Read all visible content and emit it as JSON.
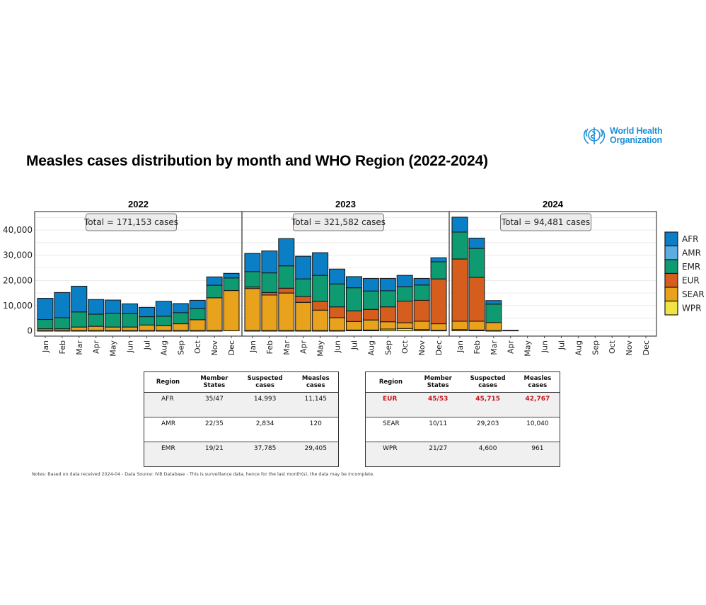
{
  "logo": {
    "line1": "World Health",
    "line2": "Organization",
    "icon": "who-emblem-icon"
  },
  "title": "Measles cases distribution by month and WHO Region (2022-2024)",
  "chart_data": {
    "type": "bar",
    "stacked": true,
    "title": "Measles cases distribution by month and WHO Region (2022-2024)",
    "xlabel": "",
    "ylabel": "",
    "ylim": [
      0,
      47000
    ],
    "yticks": [
      0,
      10000,
      20000,
      30000,
      40000
    ],
    "ytick_labels": [
      "0",
      "10,000",
      "20,000",
      "30,000",
      "40,000"
    ],
    "grid": true,
    "legend_position": "right",
    "legend": [
      "AFR",
      "AMR",
      "EMR",
      "EUR",
      "SEAR",
      "WPR"
    ],
    "colors": {
      "AFR": "#0b7fc5",
      "AMR": "#5aaee3",
      "EMR": "#0f9b72",
      "EUR": "#d55e1f",
      "SEAR": "#e8a21b",
      "WPR": "#efe443"
    },
    "categories": [
      "Jan",
      "Feb",
      "Mar",
      "Apr",
      "May",
      "Jun",
      "Jul",
      "Aug",
      "Sep",
      "Oct",
      "Nov",
      "Dec"
    ],
    "panels": [
      {
        "year": "2022",
        "total_label": "Total = 171,153 cases",
        "series": [
          {
            "name": "WPR",
            "values": [
              100,
              100,
              100,
              100,
              100,
              100,
              100,
              100,
              100,
              100,
              100,
              0
            ]
          },
          {
            "name": "SEAR",
            "values": [
              700,
              700,
              1400,
              1700,
              1400,
              1400,
              2200,
              1900,
              2700,
              4300,
              13000,
              16000
            ]
          },
          {
            "name": "EUR",
            "values": [
              0,
              0,
              0,
              0,
              0,
              0,
              0,
              0,
              0,
              0,
              0,
              0
            ]
          },
          {
            "name": "EMR",
            "values": [
              3700,
              4400,
              6000,
              4800,
              5500,
              5300,
              3300,
              3800,
              4400,
              4400,
              5000,
              5000
            ]
          },
          {
            "name": "AMR",
            "values": [
              0,
              0,
              0,
              0,
              0,
              0,
              0,
              0,
              0,
              0,
              0,
              0
            ]
          },
          {
            "name": "AFR",
            "values": [
              8400,
              10000,
              10200,
              5800,
              5200,
              3900,
              3700,
              5900,
              3600,
              3300,
              3300,
              1800
            ]
          }
        ]
      },
      {
        "year": "2023",
        "total_label": "Total = 321,582 cases",
        "series": [
          {
            "name": "WPR",
            "values": [
              100,
              100,
              100,
              100,
              100,
              100,
              300,
              300,
              700,
              900,
              500,
              200
            ]
          },
          {
            "name": "SEAR",
            "values": [
              16700,
              14100,
              14900,
              11200,
              8100,
              5100,
              3400,
              4000,
              2900,
              2300,
              3300,
              2600
            ]
          },
          {
            "name": "EUR",
            "values": [
              600,
              1000,
              1900,
              2300,
              3500,
              4300,
              4200,
              4200,
              5900,
              8600,
              8300,
              17800
            ]
          },
          {
            "name": "EMR",
            "values": [
              6100,
              7800,
              8900,
              7000,
              10300,
              9100,
              9200,
              7300,
              6400,
              5700,
              6100,
              6800
            ]
          },
          {
            "name": "AMR",
            "values": [
              0,
              0,
              0,
              0,
              0,
              0,
              0,
              0,
              0,
              0,
              0,
              0
            ]
          },
          {
            "name": "AFR",
            "values": [
              7200,
              8700,
              10800,
              9000,
              9000,
              5900,
              4400,
              5000,
              4900,
              4500,
              2600,
              1600
            ]
          }
        ]
      },
      {
        "year": "2024",
        "total_label": "Total =  94,481 cases",
        "series": [
          {
            "name": "WPR",
            "values": [
              500,
              300,
              100,
              200,
              0,
              0,
              0,
              0,
              0,
              0,
              0,
              0
            ]
          },
          {
            "name": "SEAR",
            "values": [
              3300,
              3500,
              3200,
              0,
              0,
              0,
              0,
              0,
              0,
              0,
              0,
              0
            ]
          },
          {
            "name": "EUR",
            "values": [
              24700,
              17400,
              0,
              0,
              0,
              0,
              0,
              0,
              0,
              0,
              0,
              0
            ]
          },
          {
            "name": "EMR",
            "values": [
              10700,
              11500,
              7300,
              0,
              0,
              0,
              0,
              0,
              0,
              0,
              0,
              0
            ]
          },
          {
            "name": "AMR",
            "values": [
              0,
              0,
              0,
              0,
              0,
              0,
              0,
              0,
              0,
              0,
              0,
              0
            ]
          },
          {
            "name": "AFR",
            "values": [
              5900,
              4100,
              1400,
              0,
              0,
              0,
              0,
              0,
              0,
              0,
              0,
              0
            ]
          }
        ]
      }
    ]
  },
  "tables": [
    {
      "headers": [
        "Region",
        "Member\nStates",
        "Suspected\ncases",
        "Measles\ncases"
      ],
      "rows": [
        {
          "region": "AFR",
          "member_states": "35/47",
          "suspected": "14,993",
          "measles": "11,145",
          "highlight": false
        },
        {
          "region": "AMR",
          "member_states": "22/35",
          "suspected": "2,834",
          "measles": "120",
          "highlight": false
        },
        {
          "region": "EMR",
          "member_states": "19/21",
          "suspected": "37,785",
          "measles": "29,405",
          "highlight": false
        }
      ]
    },
    {
      "headers": [
        "Region",
        "Member\nStates",
        "Suspected\ncases",
        "Measles\ncases"
      ],
      "rows": [
        {
          "region": "EUR",
          "member_states": "45/53",
          "suspected": "45,715",
          "measles": "42,767",
          "highlight": true
        },
        {
          "region": "SEAR",
          "member_states": "10/11",
          "suspected": "29,203",
          "measles": "10,040",
          "highlight": false
        },
        {
          "region": "WPR",
          "member_states": "21/27",
          "suspected": "4,600",
          "measles": "961",
          "highlight": false
        }
      ]
    }
  ],
  "highlight_color": "#c4161c",
  "notes": "Notes: Based on data received 2024-04 - Data Source: IVB Database - This is surveillance data, hence for the last month(s), the data may be incomplete."
}
